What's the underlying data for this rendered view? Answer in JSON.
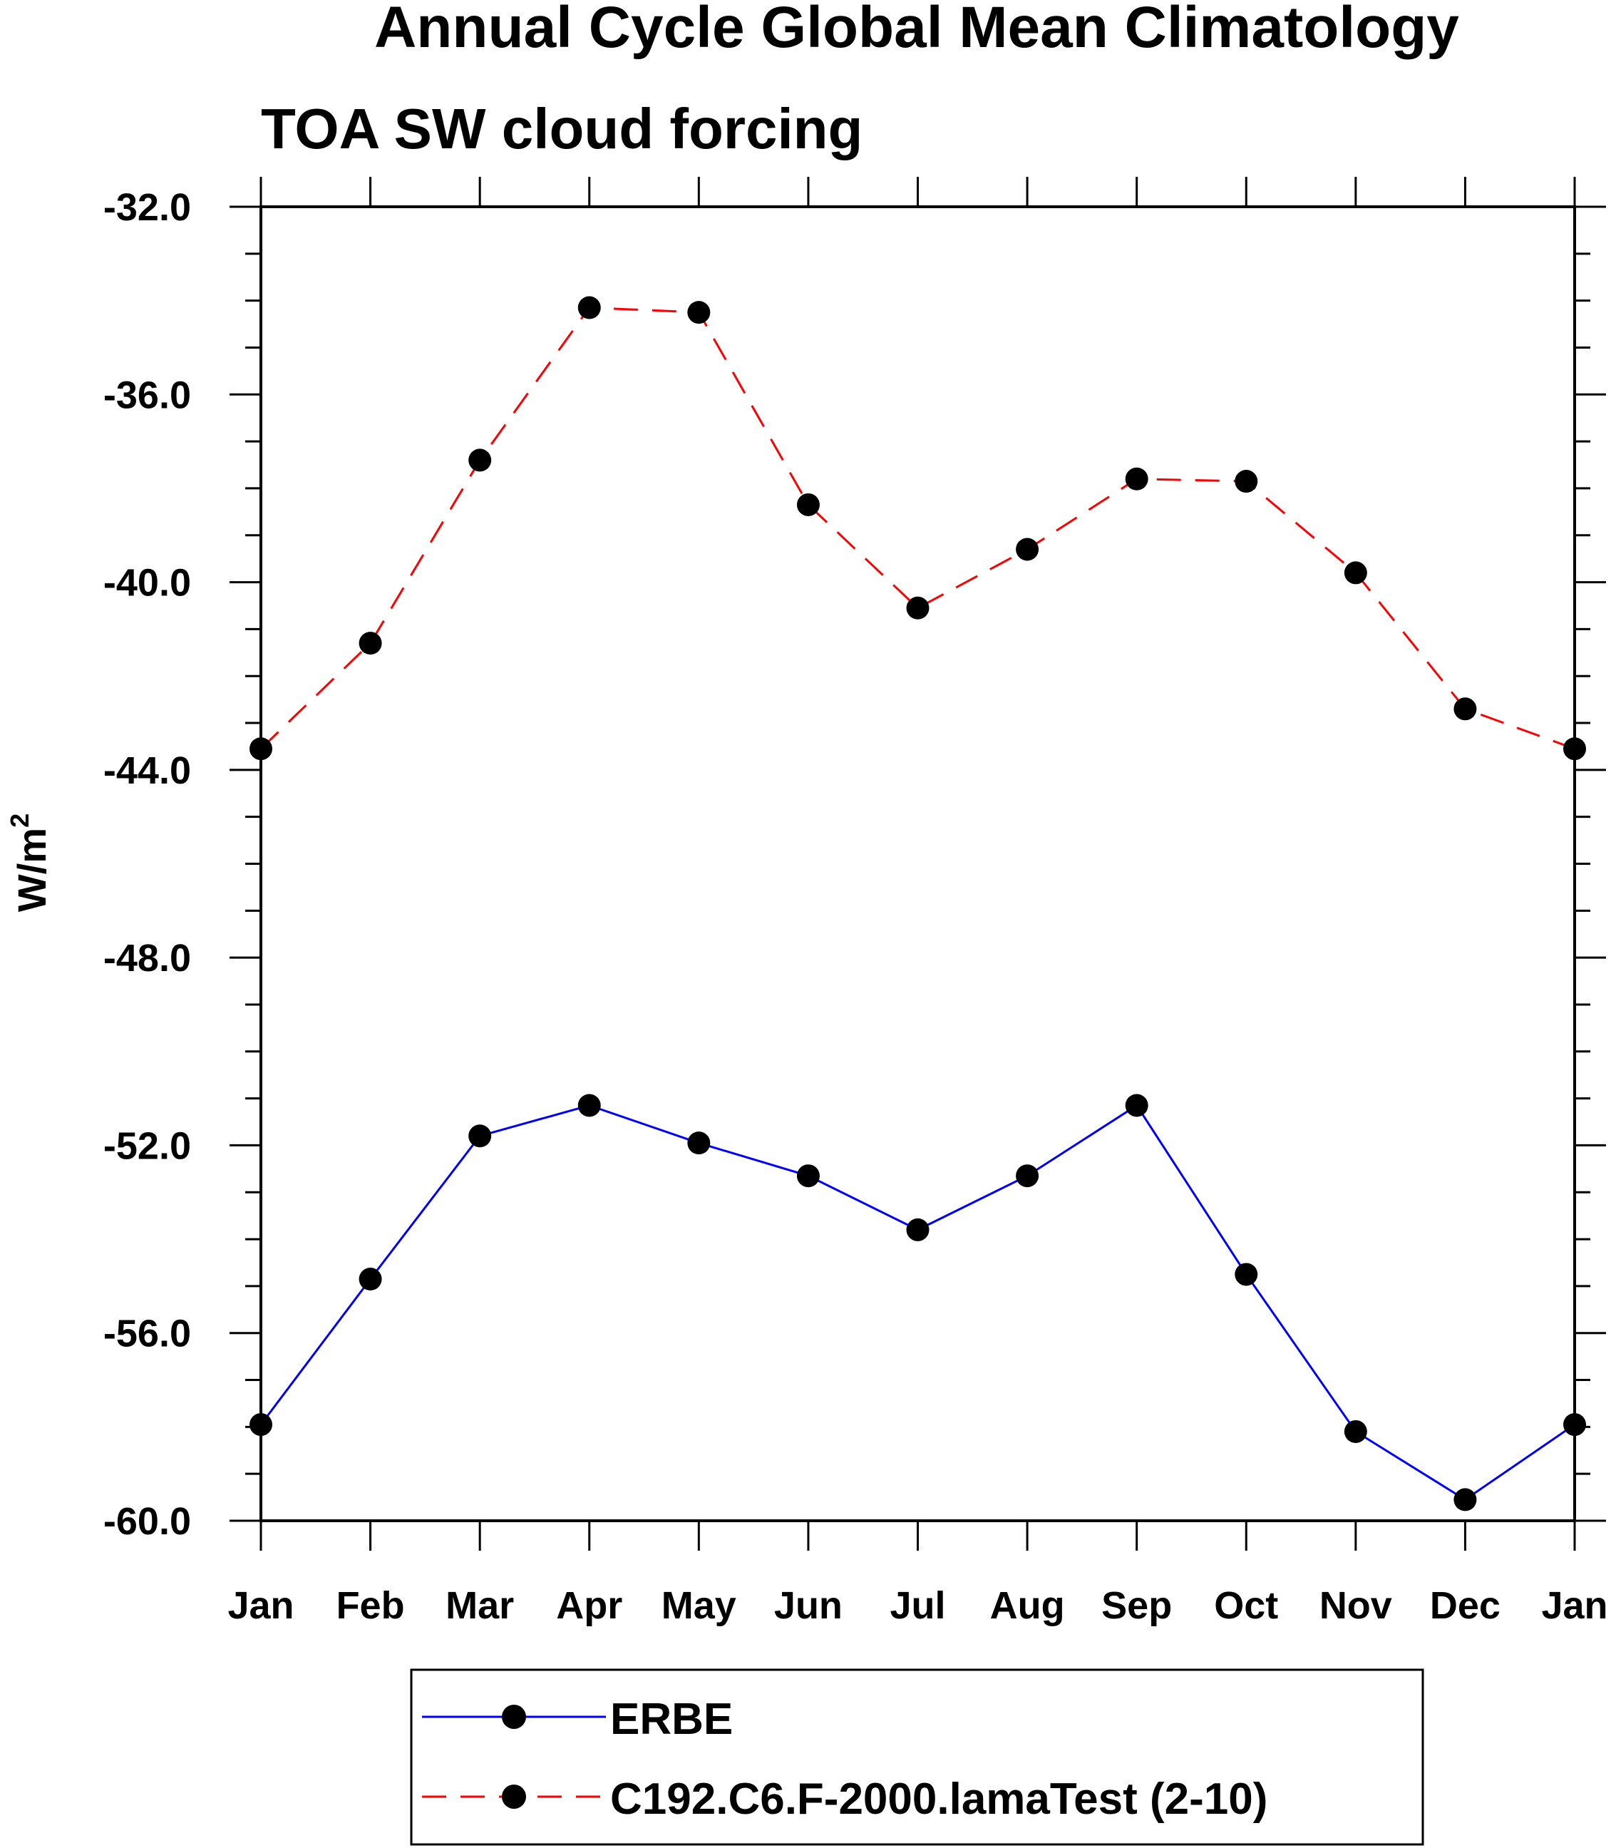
{
  "chart_data": {
    "type": "line",
    "title": "Annual Cycle Global Mean Climatology",
    "subtitle": "TOA SW cloud forcing",
    "ylabel": "W/m",
    "ylabel_superscript": "2",
    "xlabel": "",
    "categories": [
      "Jan",
      "Feb",
      "Mar",
      "Apr",
      "May",
      "Jun",
      "Jul",
      "Aug",
      "Sep",
      "Oct",
      "Nov",
      "Dec",
      "Jan"
    ],
    "ylim": [
      -60.0,
      -32.0
    ],
    "yticks": [
      "-32.0",
      "-36.0",
      "-40.0",
      "-44.0",
      "-48.0",
      "-52.0",
      "-56.0",
      "-60.0"
    ],
    "grid": false,
    "legend_position": "bottom",
    "series": [
      {
        "name": "ERBE",
        "color": "#0000ff",
        "line_style": "solid",
        "values": [
          -57.95,
          -54.85,
          -51.8,
          -51.15,
          -51.95,
          -52.65,
          -53.8,
          -52.65,
          -51.15,
          -54.75,
          -58.1,
          -59.55,
          -57.95
        ]
      },
      {
        "name": "C192.C6.F-2000.lamaTest (2-10)",
        "color": "#ff0000",
        "line_style": "dashed",
        "values": [
          -43.55,
          -41.3,
          -37.4,
          -34.15,
          -34.25,
          -38.35,
          -40.55,
          -39.3,
          -37.8,
          -37.85,
          -39.8,
          -42.7,
          -43.55
        ]
      }
    ]
  }
}
